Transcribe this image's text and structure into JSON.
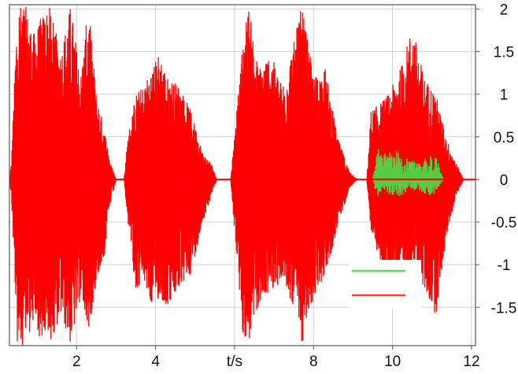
{
  "chart_data": {
    "type": "line",
    "xlabel": "t/s",
    "x_ticks": [
      {
        "value": 2,
        "label": "2"
      },
      {
        "value": 4,
        "label": "4"
      },
      {
        "value": 6,
        "label": "t/s"
      },
      {
        "value": 8,
        "label": "8"
      },
      {
        "value": 10,
        "label": "10"
      },
      {
        "value": 12,
        "label": "12"
      }
    ],
    "y_ticks": [
      {
        "value": 2,
        "label": "2"
      },
      {
        "value": 1.5,
        "label": "1.5"
      },
      {
        "value": 1,
        "label": "1"
      },
      {
        "value": 0.5,
        "label": "0.5"
      },
      {
        "value": 0,
        "label": "0"
      },
      {
        "value": -0.5,
        "label": "-0.5"
      },
      {
        "value": -1,
        "label": "-1"
      },
      {
        "value": -1.5,
        "label": "-1.5"
      }
    ],
    "xlim": [
      0.3,
      12.1
    ],
    "ylim": [
      -1.95,
      2.05
    ],
    "y_axis_side": "right",
    "grid": true,
    "legend": {
      "placement": "bottom-right",
      "entries": [
        {
          "color": "#55dd55"
        },
        {
          "color": "#ff3b3b"
        }
      ]
    },
    "colors": {
      "main": "#ff0000",
      "secondary": "#55cc44",
      "grid": "#d0d0d0"
    },
    "series": [
      {
        "color": "#ff0000",
        "envelope": [
          [
            0.3,
            0.0,
            0.0
          ],
          [
            0.35,
            0.2,
            0.2
          ],
          [
            0.5,
            2.05,
            1.95
          ],
          [
            0.7,
            2.05,
            1.95
          ],
          [
            0.9,
            1.7,
            1.7
          ],
          [
            1.1,
            1.9,
            1.9
          ],
          [
            1.3,
            2.05,
            1.95
          ],
          [
            1.6,
            1.5,
            1.6
          ],
          [
            1.85,
            2.05,
            1.95
          ],
          [
            2.1,
            1.2,
            1.4
          ],
          [
            2.3,
            2.05,
            1.8
          ],
          [
            2.5,
            1.0,
            1.2
          ],
          [
            2.7,
            0.6,
            0.9
          ],
          [
            2.85,
            0.2,
            0.3
          ],
          [
            3.0,
            0.0,
            0.0
          ],
          [
            3.2,
            0.0,
            0.0
          ],
          [
            3.3,
            0.5,
            0.5
          ],
          [
            3.5,
            1.0,
            1.3
          ],
          [
            3.7,
            1.1,
            1.2
          ],
          [
            3.9,
            1.3,
            1.5
          ],
          [
            4.1,
            1.5,
            1.4
          ],
          [
            4.3,
            1.2,
            1.5
          ],
          [
            4.6,
            1.1,
            1.3
          ],
          [
            4.9,
            0.8,
            1.1
          ],
          [
            5.2,
            0.3,
            0.5
          ],
          [
            5.4,
            0.2,
            0.2
          ],
          [
            5.55,
            0.0,
            0.0
          ],
          [
            5.9,
            0.0,
            0.0
          ],
          [
            6.0,
            0.5,
            0.6
          ],
          [
            6.2,
            1.6,
            1.8
          ],
          [
            6.35,
            2.05,
            1.95
          ],
          [
            6.6,
            1.3,
            1.5
          ],
          [
            6.9,
            1.5,
            1.3
          ],
          [
            7.2,
            1.1,
            1.2
          ],
          [
            7.5,
            1.6,
            1.5
          ],
          [
            7.7,
            2.05,
            1.95
          ],
          [
            8.0,
            1.2,
            1.4
          ],
          [
            8.3,
            1.3,
            1.1
          ],
          [
            8.6,
            0.5,
            0.6
          ],
          [
            8.9,
            0.1,
            0.1
          ],
          [
            9.1,
            0.0,
            0.0
          ],
          [
            9.35,
            0.0,
            0.0
          ],
          [
            9.45,
            0.8,
            0.6
          ],
          [
            9.7,
            0.9,
            1.0
          ],
          [
            9.9,
            1.0,
            1.1
          ],
          [
            10.2,
            1.3,
            1.2
          ],
          [
            10.5,
            1.8,
            1.0
          ],
          [
            10.8,
            1.2,
            1.3
          ],
          [
            11.1,
            1.0,
            1.6
          ],
          [
            11.35,
            0.5,
            0.7
          ],
          [
            11.6,
            0.2,
            0.2
          ],
          [
            11.8,
            0.0,
            0.0
          ],
          [
            12.1,
            0.0,
            0.0
          ]
        ]
      },
      {
        "color": "#55cc44",
        "envelope": [
          [
            9.5,
            0.0,
            0.0
          ],
          [
            9.6,
            0.4,
            0.2
          ],
          [
            9.7,
            0.3,
            0.15
          ],
          [
            10.3,
            0.35,
            0.2
          ],
          [
            10.4,
            0.2,
            0.1
          ],
          [
            11.1,
            0.3,
            0.2
          ],
          [
            11.2,
            0.1,
            0.05
          ],
          [
            11.3,
            0.0,
            0.0
          ]
        ]
      }
    ]
  }
}
